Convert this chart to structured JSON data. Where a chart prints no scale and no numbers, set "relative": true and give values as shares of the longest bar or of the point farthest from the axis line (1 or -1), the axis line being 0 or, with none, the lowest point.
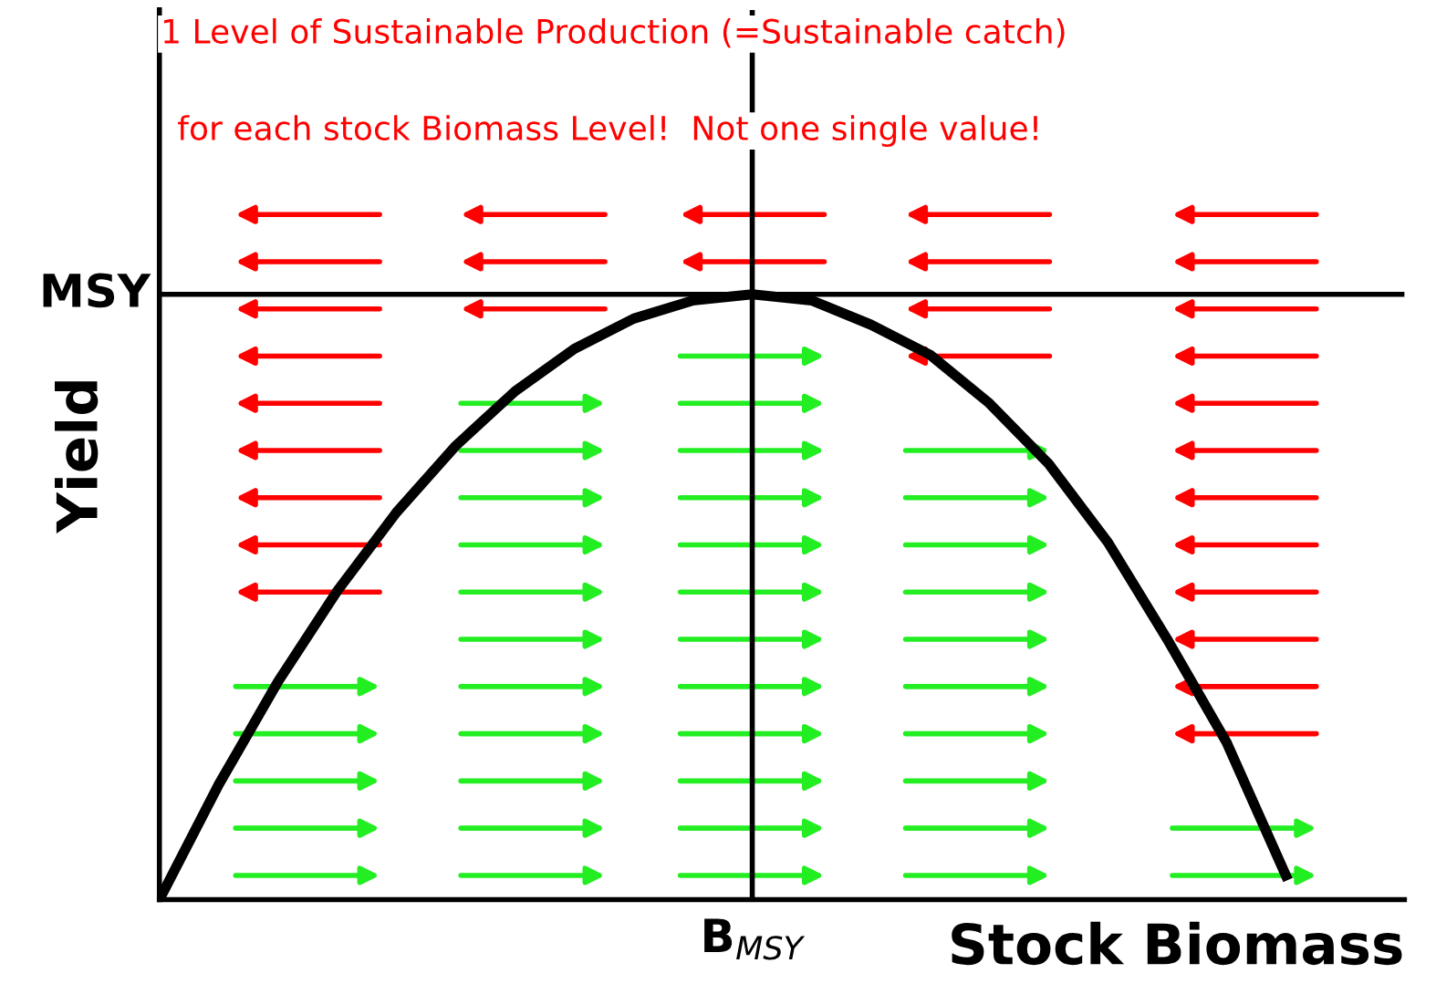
{
  "chart_data": {
    "type": "line",
    "relative": true,
    "title": "1 Level of Sustainable Production (=Sustainable catch)",
    "subtitle": "for each stock Biomass Level!  Not one single value!",
    "xlabel": "Stock Biomass",
    "ylabel": "Yield",
    "categories": [
      null,
      null,
      null,
      null,
      null,
      null,
      null,
      null,
      null,
      null,
      null,
      null,
      null,
      null,
      null,
      null,
      null,
      null,
      null,
      null,
      null,
      null
    ],
    "annotations": [
      "B$_{MSY}$",
      "MSY"
    ],
    "series": [
      {
        "color": "#000000",
        "values": [
          0,
          0.19,
          0.36,
          0.51,
          0.64,
          0.75,
          0.84,
          0.91,
          0.96,
          0.99,
          1,
          0.99,
          0.95,
          0.9,
          0.82,
          0.72,
          0.59,
          0.43,
          0.26,
          0.04,
          null,
          null
        ]
      }
    ]
  }
}
